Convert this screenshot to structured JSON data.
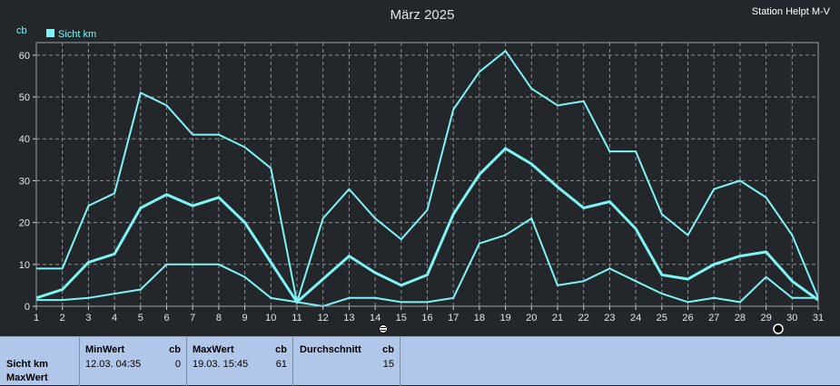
{
  "header": {
    "title": "März 2025",
    "station": "Station Helpt M-V",
    "unit": "cb"
  },
  "legend": {
    "label": "Sicht km",
    "color": "#7ff4f4"
  },
  "colors": {
    "background": "#23272b",
    "grid": "#8a8f96",
    "line": "#7ff4f4",
    "footer": "#b1c7e9"
  },
  "markers": {
    "day14_icon": "fog-icon",
    "day29_icon": "moon-phase-icon"
  },
  "chart_data": {
    "type": "line",
    "title": "März 2025",
    "ylabel": "cb",
    "ylim": [
      0,
      63
    ],
    "yticks": [
      0,
      10,
      20,
      30,
      40,
      50,
      60
    ],
    "grid": true,
    "legend_position": "top-left",
    "x": [
      "1",
      "2",
      "3",
      "4",
      "5",
      "6",
      "7",
      "8",
      "9",
      "10",
      "11",
      "12",
      "13",
      "14",
      "15",
      "16",
      "17",
      "18",
      "19",
      "20",
      "21",
      "22",
      "23",
      "24",
      "25",
      "26",
      "27",
      "28",
      "29",
      "30",
      "31"
    ],
    "series": [
      {
        "name": "Sicht km",
        "role": "max",
        "values": [
          9,
          9,
          24,
          27,
          51,
          48,
          41,
          41,
          38,
          33,
          1,
          21,
          28,
          21,
          16,
          23,
          47,
          56,
          61,
          52,
          48,
          49,
          37,
          37,
          22,
          17,
          28,
          30,
          26,
          17,
          2
        ]
      },
      {
        "name": "Sicht km",
        "role": "average",
        "values": [
          2,
          4,
          10.5,
          12.5,
          23.5,
          26.7,
          24,
          26,
          20,
          10.5,
          1,
          6.5,
          12,
          8,
          5,
          7.5,
          22,
          31.5,
          37.7,
          34,
          28.5,
          23.5,
          25,
          18.5,
          7.5,
          6.5,
          10,
          12,
          13,
          6,
          1.5
        ]
      },
      {
        "name": "Sicht km",
        "role": "min",
        "values": [
          1.5,
          1.5,
          2,
          3,
          4,
          10,
          10,
          10,
          7,
          2,
          1,
          0,
          2,
          2,
          1,
          1,
          2,
          15,
          17,
          21,
          5,
          6,
          9,
          6,
          3,
          1,
          2,
          1,
          7,
          2,
          2
        ]
      }
    ]
  },
  "footer": {
    "row_label_1": "Sicht km",
    "row_label_2": "MaxWert",
    "min": {
      "header": "MinWert",
      "unit": "cb",
      "datetime": "12.03.  04:35",
      "value": "0"
    },
    "max": {
      "header": "MaxWert",
      "unit": "cb",
      "datetime": "19.03.  15:45",
      "value": "61"
    },
    "avg": {
      "header": "Durchschnitt",
      "unit": "cb",
      "value": "15"
    }
  }
}
